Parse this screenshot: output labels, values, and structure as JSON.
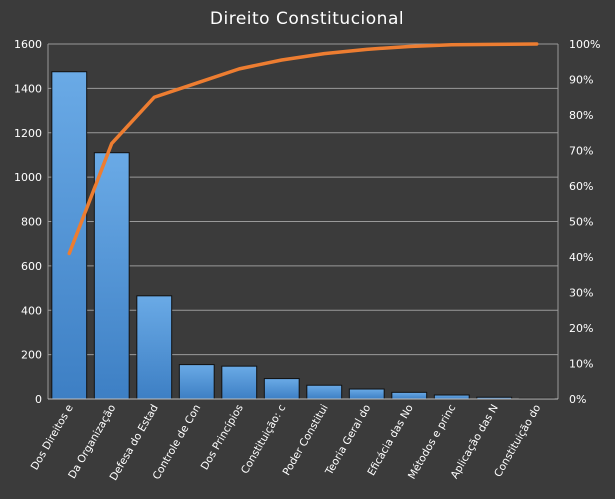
{
  "chart_data": {
    "type": "bar",
    "title": "Direito  Constitucional",
    "categories": [
      "Dos Direitos e",
      "Da Organização",
      "Defesa do Estad",
      "Controle de Con",
      "Dos Princípios",
      "Constituição: c",
      "Poder Constitui",
      "Teoria Geral do",
      "Eficácia das No",
      "Métodos e princ",
      "Aplicação das N",
      "Constituição do"
    ],
    "series": [
      {
        "type": "bar",
        "axis": "left",
        "values": [
          1475,
          1110,
          465,
          155,
          148,
          92,
          62,
          45,
          30,
          18,
          8,
          3
        ]
      },
      {
        "type": "line",
        "axis": "right",
        "values": [
          0.41,
          0.72,
          0.85,
          0.89,
          0.93,
          0.955,
          0.973,
          0.985,
          0.993,
          0.998,
          0.999,
          1.0
        ]
      }
    ],
    "y_left": {
      "min": 0,
      "max": 1600,
      "ticks": [
        "0",
        "200",
        "400",
        "600",
        "800",
        "1000",
        "1200",
        "1400",
        "1600"
      ]
    },
    "y_right": {
      "min": 0,
      "max": 1,
      "ticks": [
        "0%",
        "10%",
        "20%",
        "30%",
        "40%",
        "50%",
        "60%",
        "70%",
        "80%",
        "90%",
        "100%"
      ]
    },
    "grid": true,
    "legend": "none",
    "colors": {
      "bar": "#5b9bd5",
      "line": "#ed7d31",
      "background": "#3b3b3b",
      "grid": "#9a9a9a",
      "text": "#ffffff"
    }
  }
}
